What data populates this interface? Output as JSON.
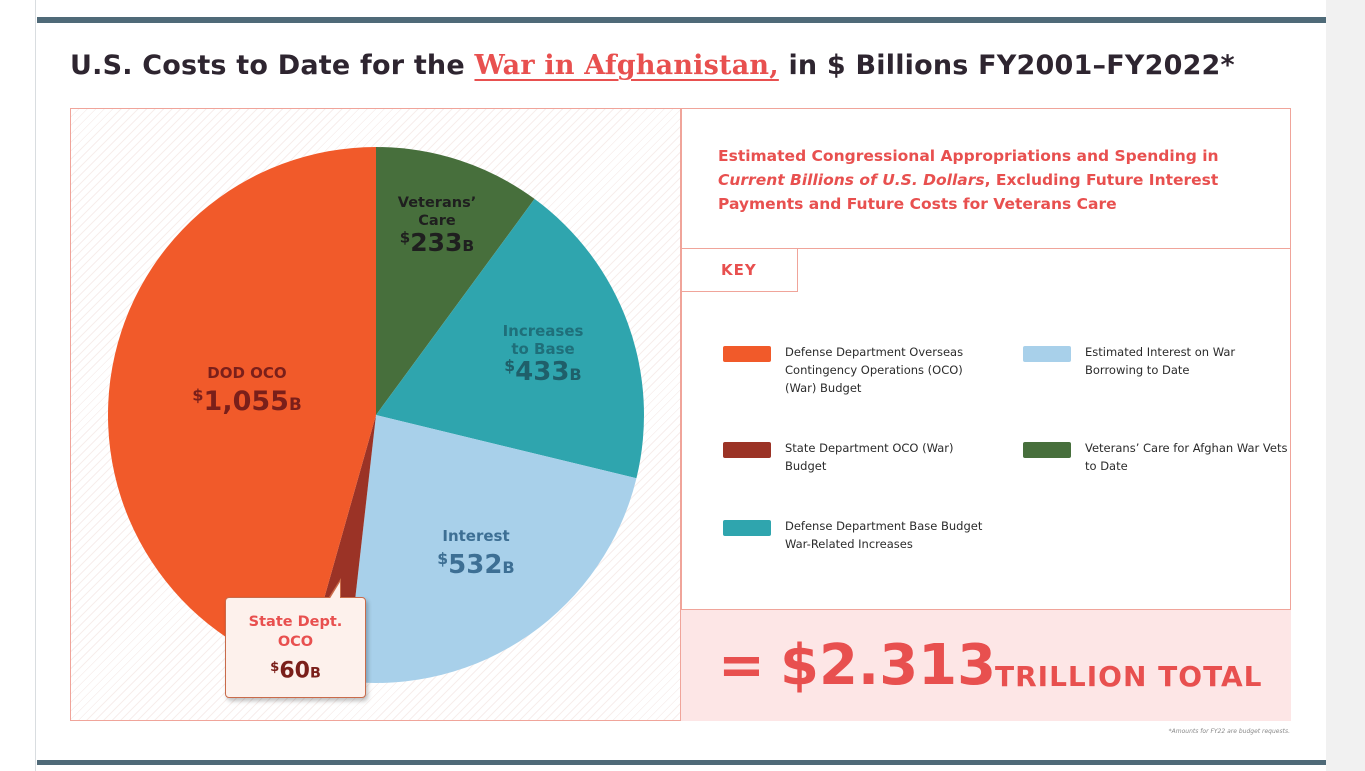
{
  "title": {
    "prefix": "U.S. Costs to Date for the",
    "highlight": "War in Afghanistan,",
    "suffix": "in $ Billions FY2001–FY2022*"
  },
  "subtitle": {
    "line1": "Estimated Congressional Appropriations and Spending in",
    "line2_italic": "Current Billions of U.S. Dollars",
    "line2_rest": ", Excluding Future Interest",
    "line3": "Payments and Future Costs for Veterans Care"
  },
  "key_label": "KEY",
  "legend": [
    {
      "color": "#f15a2a",
      "text": "Defense Department Overseas Contingency Operations (OCO) (War) Budget"
    },
    {
      "color": "#a8d0ea",
      "text": "Estimated Interest on War Borrowing to Date"
    },
    {
      "color": "#9b3326",
      "text": "State Department OCO (War) Budget"
    },
    {
      "color": "#476f3c",
      "text": "Veterans’ Care for Afghan War Vets to Date"
    },
    {
      "color": "#2fa5ae",
      "text": "Defense Department Base Budget War-Related Increases"
    }
  ],
  "total": {
    "equals": "=",
    "amount": "$2.313",
    "label": "TRILLION TOTAL"
  },
  "footnote": "*Amounts for FY22 are budget requests.",
  "callout": {
    "line1": "State Dept.",
    "line2": "OCO",
    "currency": "$",
    "number": "60",
    "unit": "B"
  },
  "chart_data": {
    "type": "pie",
    "title": "U.S. Costs to Date for the War in Afghanistan, in $ Billions FY2001–FY2022*",
    "unit": "$ Billions",
    "slices": [
      {
        "id": "veterans",
        "label_lines": [
          "Veterans’",
          "Care"
        ],
        "currency": "$",
        "number": "233",
        "unit": "B",
        "value": 233,
        "color": "#476f3c",
        "label_color": "#1f1f1f",
        "value_color": "#1f1f1f"
      },
      {
        "id": "base",
        "label_lines": [
          "Increases",
          "to Base"
        ],
        "currency": "$",
        "number": "433",
        "unit": "B",
        "value": 433,
        "color": "#2fa5ae",
        "label_color": "#1f6f7a",
        "value_color": "#1f5f6a"
      },
      {
        "id": "interest",
        "label_lines": [
          "Interest"
        ],
        "currency": "$",
        "number": "532",
        "unit": "B",
        "value": 532,
        "color": "#a8d0ea",
        "label_color": "#3d6f94",
        "value_color": "#3d6f94"
      },
      {
        "id": "state",
        "label_lines": [],
        "currency": "$",
        "number": "60",
        "unit": "B",
        "value": 60,
        "color": "#9b3326",
        "label_color": "#7a1f1a",
        "value_color": "#7a1f1a"
      },
      {
        "id": "dod",
        "label_lines": [
          "DOD OCO"
        ],
        "currency": "$",
        "number": "1,055",
        "unit": "B",
        "value": 1055,
        "color": "#f15a2a",
        "label_color": "#7a1f1a",
        "value_color": "#7a1f1a"
      }
    ],
    "legend_placement": "right",
    "total_label": "$2.313 TRILLION TOTAL"
  }
}
